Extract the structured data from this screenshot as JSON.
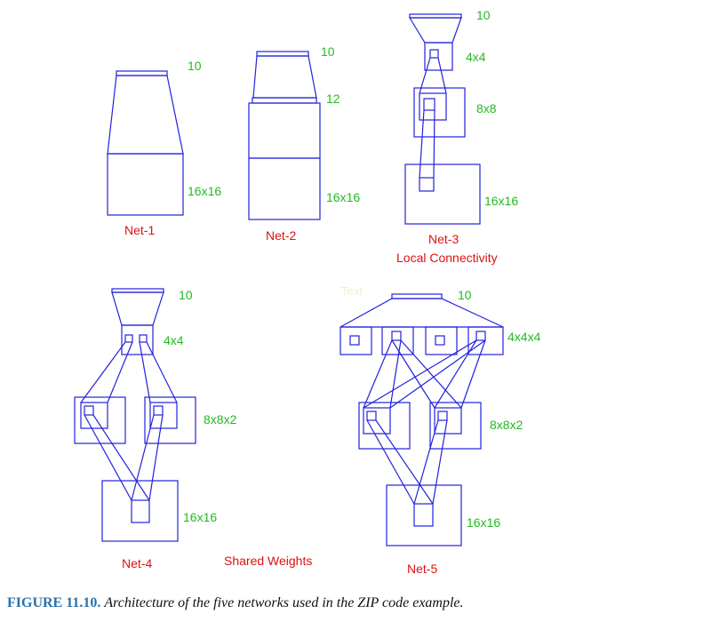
{
  "net1": {
    "name": "Net-1",
    "labels": [
      "10",
      "16x16"
    ]
  },
  "net2": {
    "name": "Net-2",
    "labels": [
      "10",
      "12",
      "16x16"
    ]
  },
  "net3": {
    "name": "Net-3",
    "subtitle": "Local Connectivity",
    "labels": [
      "10",
      "4x4",
      "8x8",
      "16x16"
    ]
  },
  "net4": {
    "name": "Net-4",
    "labels": [
      "10",
      "4x4",
      "8x8x2",
      "16x16"
    ]
  },
  "net5": {
    "name": "Net-5",
    "labels": [
      "10",
      "4x4x4",
      "8x8x2",
      "16x16"
    ]
  },
  "shared_weights": "Shared Weights",
  "stray_text": "Text",
  "caption": {
    "number": "FIGURE 11.10.",
    "text": "Architecture of the five networks used in the ZIP code example."
  },
  "colors": {
    "shape": "#2222dd",
    "layer_label": "#22bb22",
    "net_label": "#dd1111",
    "caption_number": "#2a6fa8"
  }
}
